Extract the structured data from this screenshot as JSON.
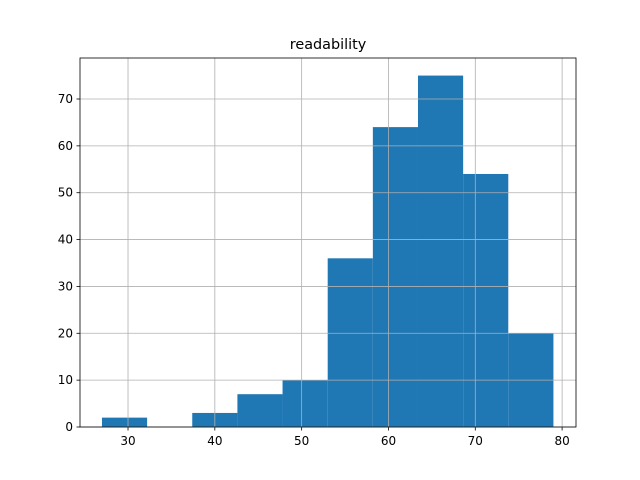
{
  "chart_data": {
    "type": "histogram",
    "title": "readability",
    "bins": [
      27,
      32.2,
      37.4,
      42.6,
      47.8,
      53,
      58.2,
      63.4,
      68.6,
      73.8,
      79
    ],
    "values": [
      2,
      0,
      3,
      7,
      10,
      36,
      64,
      75,
      54,
      20
    ],
    "color": "#1f77b4",
    "xlim": [
      24.47,
      81.6
    ],
    "xticks": [
      30,
      40,
      50,
      60,
      70,
      80
    ],
    "ylim": [
      0,
      78.75
    ],
    "yticks": [
      0,
      10,
      20,
      30,
      40,
      50,
      60,
      70
    ],
    "grid": true
  }
}
